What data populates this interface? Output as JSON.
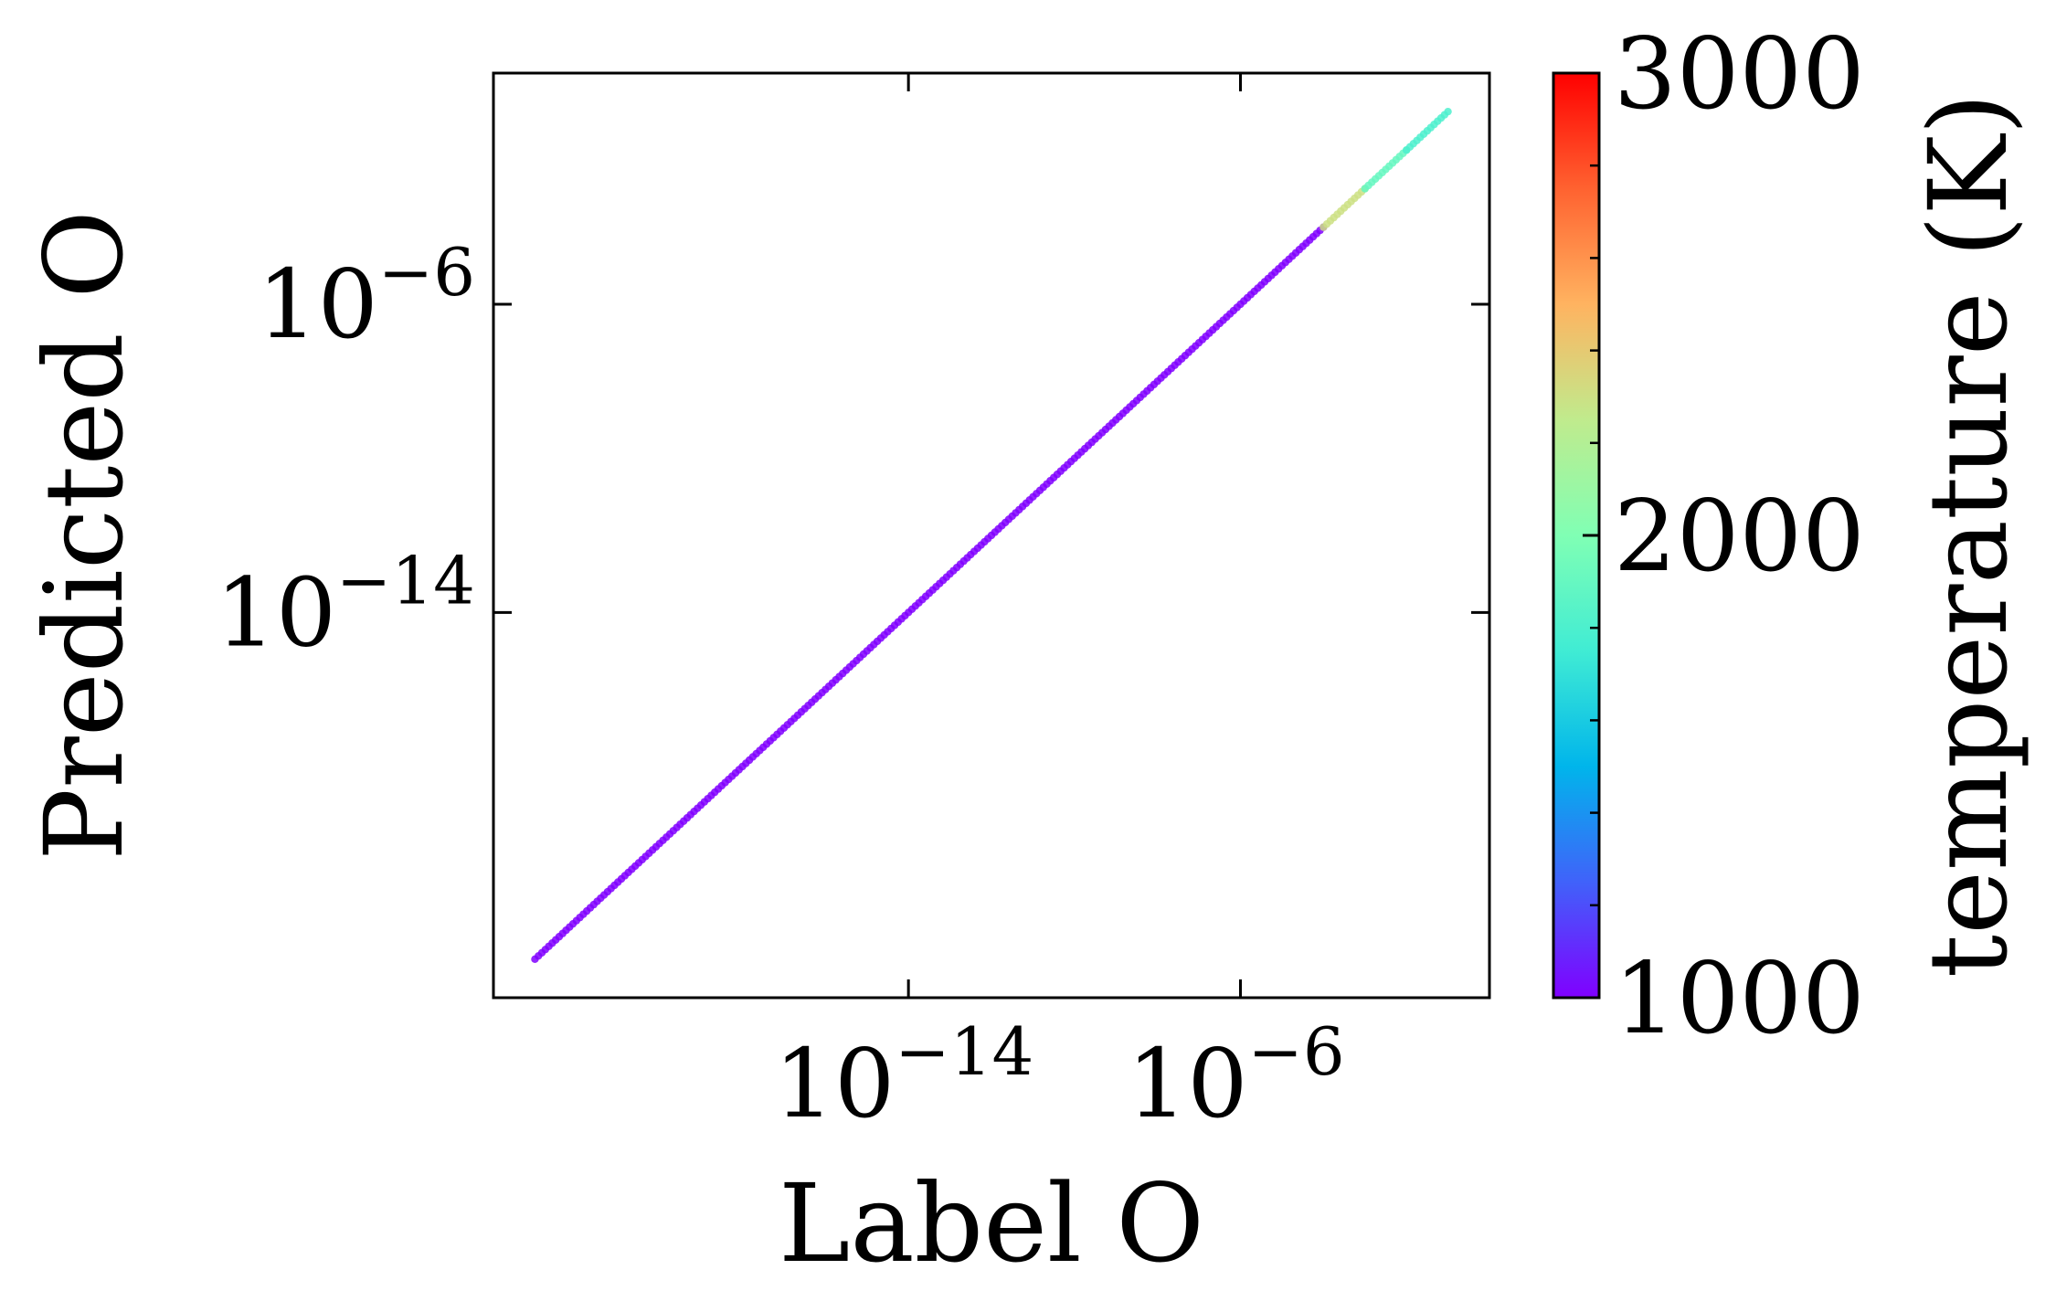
{
  "chart_data": {
    "type": "scatter",
    "title": "",
    "xlabel": "Label O",
    "ylabel": "Predicted O",
    "xscale": "log",
    "yscale": "log",
    "xlim": [
      1e-24,
      1.0
    ],
    "ylim": [
      1e-24,
      1.0
    ],
    "xticks": [
      {
        "value": 1e-14,
        "base": "10",
        "exp": "−14"
      },
      {
        "value": 1e-06,
        "base": "10",
        "exp": "−6"
      }
    ],
    "yticks": [
      {
        "value": 1e-14,
        "base": "10",
        "exp": "−14"
      },
      {
        "value": 1e-06,
        "base": "10",
        "exp": "−6"
      }
    ],
    "grid": false,
    "series": [
      {
        "x_range": [
          1e-23,
          0.1
        ],
        "description_relation": "predicted equals label",
        "segments": [
          {
            "x_from": 1e-23,
            "x_to": 0.0001,
            "temperature": 1000
          },
          {
            "x_from": 0.0001,
            "x_to": 0.001,
            "temperature": 2300
          },
          {
            "x_from": 0.001,
            "x_to": 0.01,
            "temperature": 1900
          },
          {
            "x_from": 0.01,
            "x_to": 0.1,
            "temperature": 1800
          }
        ]
      }
    ],
    "colorbar": {
      "label": "temperature (K)",
      "colormap": "rainbow",
      "range": [
        1000,
        3000
      ],
      "ticks": [
        "1000",
        "2000",
        "3000"
      ],
      "minor_ticks": [
        1200,
        1400,
        1600,
        1800,
        2200,
        2400,
        2600,
        2800
      ],
      "colors": [
        "#8000ff",
        "#4062fa",
        "#00b5eb",
        "#40ecd4",
        "#80ffb4",
        "#c0eb8d",
        "#ffb360",
        "#ff6230",
        "#ff0000"
      ]
    }
  }
}
